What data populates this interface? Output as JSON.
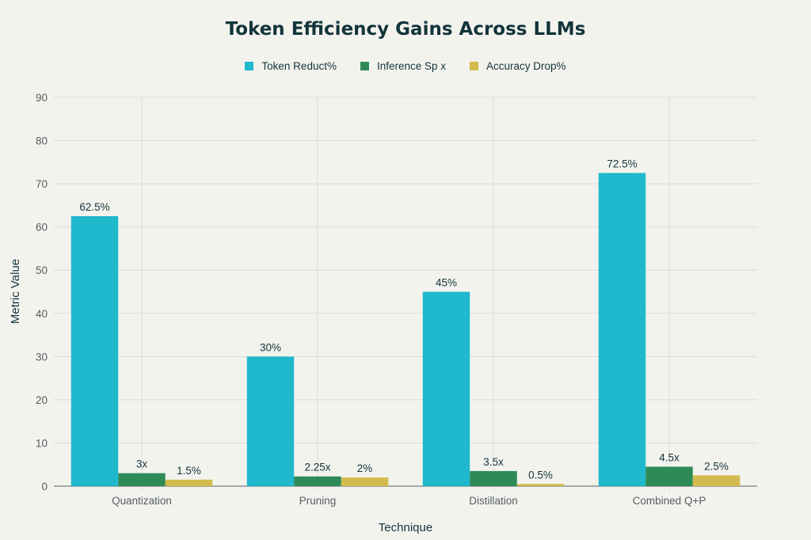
{
  "chart_data": {
    "type": "bar",
    "title": "Token Efficiency Gains Across LLMs",
    "xlabel": "Technique",
    "ylabel": "Metric Value",
    "ylim": [
      0,
      90
    ],
    "yticks": [
      0,
      10,
      20,
      30,
      40,
      50,
      60,
      70,
      80,
      90
    ],
    "grid": true,
    "legend_position": "top-center",
    "categories": [
      "Quantization",
      "Pruning",
      "Distillation",
      "Combined Q+P"
    ],
    "series": [
      {
        "name": "Token Reduct%",
        "color": "#1fb8cd",
        "values": [
          62.5,
          30,
          45,
          72.5
        ],
        "labels": [
          "62.5%",
          "30%",
          "45%",
          "72.5%"
        ]
      },
      {
        "name": "Inference Sp x",
        "color": "#2e8b57",
        "values": [
          3,
          2.25,
          3.5,
          4.5
        ],
        "labels": [
          "3x",
          "2.25x",
          "3.5x",
          "4.5x"
        ]
      },
      {
        "name": "Accuracy Drop%",
        "color": "#d2ba4c",
        "values": [
          1.5,
          2,
          0.5,
          2.5
        ],
        "labels": [
          "1.5%",
          "2%",
          "0.5%",
          "2.5%"
        ]
      }
    ]
  }
}
